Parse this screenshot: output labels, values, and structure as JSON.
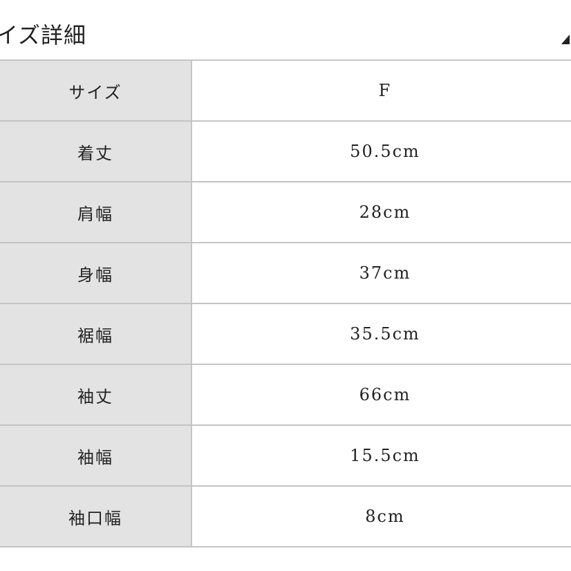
{
  "title": "イズ詳細",
  "rows": [
    {
      "label": "サイズ",
      "value": "F"
    },
    {
      "label": "着丈",
      "value": "50.5cm"
    },
    {
      "label": "肩幅",
      "value": "28cm"
    },
    {
      "label": "身幅",
      "value": "37cm"
    },
    {
      "label": "裾幅",
      "value": "35.5cm"
    },
    {
      "label": "袖丈",
      "value": "66cm"
    },
    {
      "label": "袖幅",
      "value": "15.5cm"
    },
    {
      "label": "袖口幅",
      "value": "8cm"
    }
  ]
}
